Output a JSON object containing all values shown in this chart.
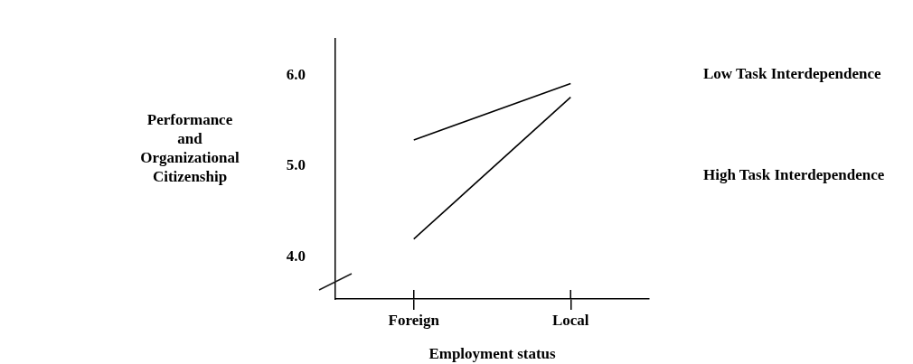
{
  "chart_data": {
    "type": "line",
    "xlabel": "Employment status",
    "ylabel": "Performance and Organizational Citizenship",
    "categories": [
      "Foreign",
      "Local"
    ],
    "series": [
      {
        "name": "Low Task Interdependence",
        "color": "#000000",
        "values": [
          5.29,
          5.91
        ]
      },
      {
        "name": "High Task Interdependence",
        "color": "#000000",
        "values": [
          4.2,
          5.76
        ]
      }
    ],
    "ylim": [
      3.54,
      6.4
    ],
    "yticks": [
      {
        "value": 4,
        "label": "4.0"
      },
      {
        "value": 5,
        "label": "5.0"
      },
      {
        "value": 6,
        "label": "6.0"
      }
    ],
    "grid": false,
    "legend": "right",
    "marker": "none",
    "line_style": "solid"
  }
}
